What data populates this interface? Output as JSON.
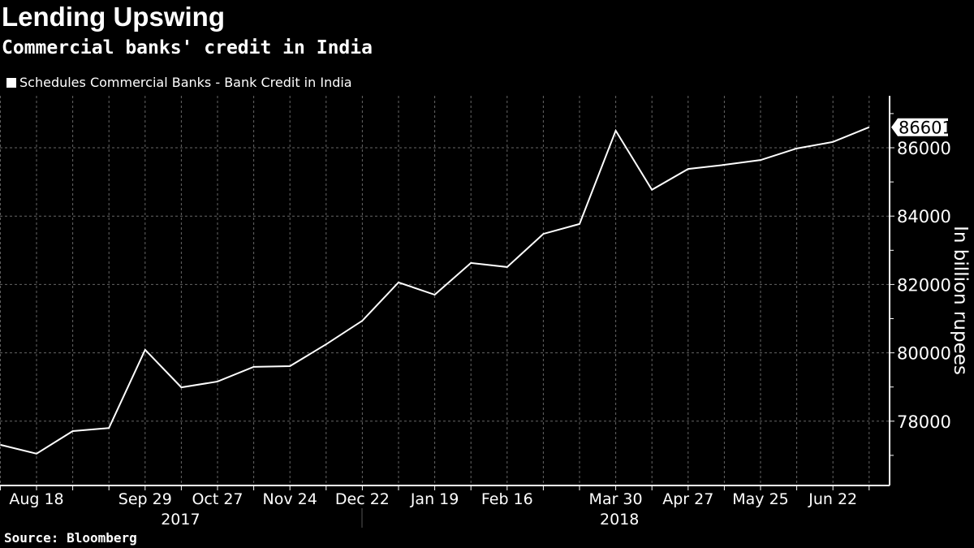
{
  "header": {
    "title": "Lending Upswing",
    "subtitle": "Commercial banks' credit in India"
  },
  "source": "Source: Bloomberg",
  "chart_data": {
    "type": "line",
    "title": "Lending Upswing",
    "subtitle": "Commercial banks' credit in India",
    "ylabel": "In billion rupees",
    "xlabel": "",
    "ylim": [
      76200,
      87200
    ],
    "yticks": [
      78000,
      80000,
      82000,
      84000,
      86000
    ],
    "x_tick_labels": [
      "Aug 18",
      "Sep 29",
      "Oct 27",
      "Nov 24",
      "Dec 22",
      "Jan 19",
      "Feb 16",
      "Mar 30",
      "Apr 27",
      "May 25",
      "Jun 22"
    ],
    "x_tick_dates": [
      "2017-08-18",
      "2017-09-29",
      "2017-10-27",
      "2017-11-24",
      "2017-12-22",
      "2018-01-19",
      "2018-02-16",
      "2018-03-30",
      "2018-04-27",
      "2018-05-25",
      "2018-06-22"
    ],
    "year_labels": [
      {
        "label": "2017",
        "date": "2017-10-13"
      },
      {
        "label": "2018",
        "date": "2018-04-13"
      }
    ],
    "grid": true,
    "legend_position": "top-left",
    "axis_side": "right",
    "last_value_label": "86601",
    "colors": {
      "background": "#000000",
      "line": "#ffffff",
      "grid": "#666666"
    },
    "series": [
      {
        "name": "Schedules Commercial Banks - Bank Credit in India",
        "x": [
          "2017-08-04",
          "2017-08-18",
          "2017-09-01",
          "2017-09-15",
          "2017-09-29",
          "2017-10-13",
          "2017-10-27",
          "2017-11-10",
          "2017-11-24",
          "2017-12-08",
          "2017-12-22",
          "2018-01-05",
          "2018-01-19",
          "2018-02-02",
          "2018-02-16",
          "2018-03-02",
          "2018-03-16",
          "2018-03-30",
          "2018-04-13",
          "2018-04-27",
          "2018-05-11",
          "2018-05-25",
          "2018-06-08",
          "2018-06-22",
          "2018-07-06"
        ],
        "values": [
          77310,
          77050,
          77710,
          77800,
          80090,
          78990,
          79160,
          79590,
          79610,
          80250,
          80940,
          82060,
          81700,
          82630,
          82510,
          83480,
          83770,
          86500,
          84770,
          85380,
          85500,
          85640,
          85980,
          86170,
          86601
        ]
      }
    ]
  }
}
